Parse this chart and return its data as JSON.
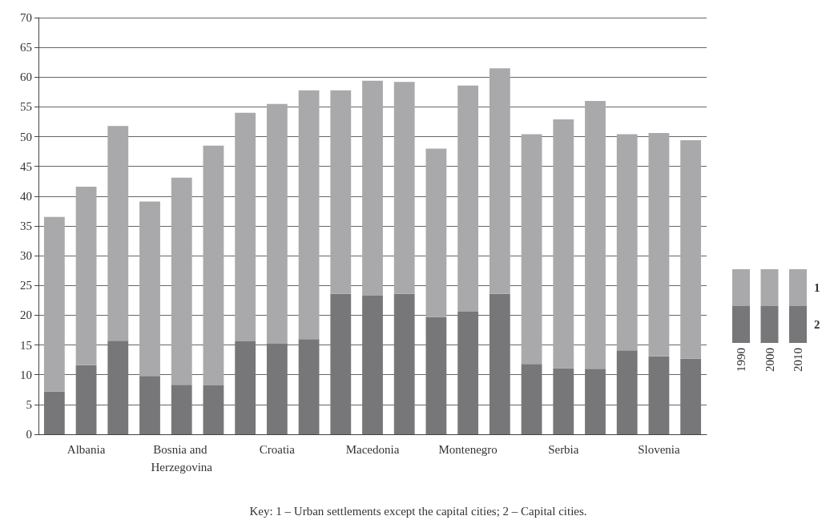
{
  "chart_data": {
    "type": "bar",
    "stacked": true,
    "categories": [
      null,
      "Albania",
      null,
      null,
      "Bosnia and Herzegovina",
      null,
      null,
      "Croatia",
      null,
      null,
      "Macedonia",
      null,
      null,
      "Montenegro",
      null,
      null,
      "Serbia",
      null,
      null,
      "Slovenia",
      null
    ],
    "series": [
      {
        "name": "2",
        "color": "#77777a",
        "values": [
          7.2,
          11.6,
          15.7,
          9.8,
          8.3,
          8.2,
          15.6,
          15.2,
          16.0,
          23.6,
          23.3,
          23.6,
          19.7,
          20.6,
          23.6,
          11.8,
          11.1,
          11.0,
          14.1,
          13.1,
          12.7
        ]
      },
      {
        "name": "1",
        "color": "#a9a9ab",
        "values": [
          29.3,
          30.0,
          36.1,
          29.3,
          34.8,
          40.3,
          38.4,
          40.3,
          41.8,
          34.2,
          36.1,
          35.6,
          28.3,
          38.0,
          37.9,
          38.6,
          41.8,
          45.0,
          36.3,
          37.5,
          36.7
        ]
      }
    ],
    "ylim": [
      0,
      70
    ],
    "yticks": [
      0,
      5,
      10,
      15,
      20,
      25,
      30,
      35,
      40,
      45,
      50,
      55,
      60,
      65,
      70
    ],
    "grid": "y",
    "legend": "right",
    "annotations": [
      "1990",
      "2000",
      "2010",
      "Key: 1 – Urban settlements except the capital cities; 2 – Capital cities."
    ]
  }
}
